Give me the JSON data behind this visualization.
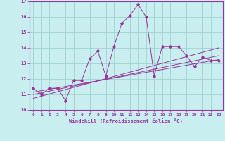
{
  "xlabel": "Windchill (Refroidissement éolien,°C)",
  "xlim": [
    -0.5,
    23.5
  ],
  "ylim": [
    10,
    17
  ],
  "yticks": [
    10,
    11,
    12,
    13,
    14,
    15,
    16,
    17
  ],
  "xticks": [
    0,
    1,
    2,
    3,
    4,
    5,
    6,
    7,
    8,
    9,
    10,
    11,
    12,
    13,
    14,
    15,
    16,
    17,
    18,
    19,
    20,
    21,
    22,
    23
  ],
  "bg_color": "#c8eef0",
  "line_color": "#993399",
  "grid_color": "#99cccc",
  "series1_x": [
    0,
    1,
    2,
    3,
    4,
    5,
    6,
    7,
    8,
    9,
    10,
    11,
    12,
    13,
    14,
    15,
    16,
    17,
    18,
    19,
    20,
    21,
    22,
    23
  ],
  "series1_y": [
    11.4,
    11.0,
    11.4,
    11.4,
    10.6,
    11.9,
    11.9,
    13.3,
    13.8,
    12.2,
    14.1,
    15.6,
    16.1,
    16.8,
    16.0,
    12.2,
    14.1,
    14.1,
    14.1,
    13.5,
    12.8,
    13.4,
    13.2,
    13.2
  ],
  "series2_x": [
    0,
    23
  ],
  "series2_y": [
    11.0,
    13.5
  ],
  "series3_x": [
    0,
    23
  ],
  "series3_y": [
    11.15,
    13.25
  ],
  "series4_x": [
    0,
    23
  ],
  "series4_y": [
    10.75,
    14.0
  ]
}
